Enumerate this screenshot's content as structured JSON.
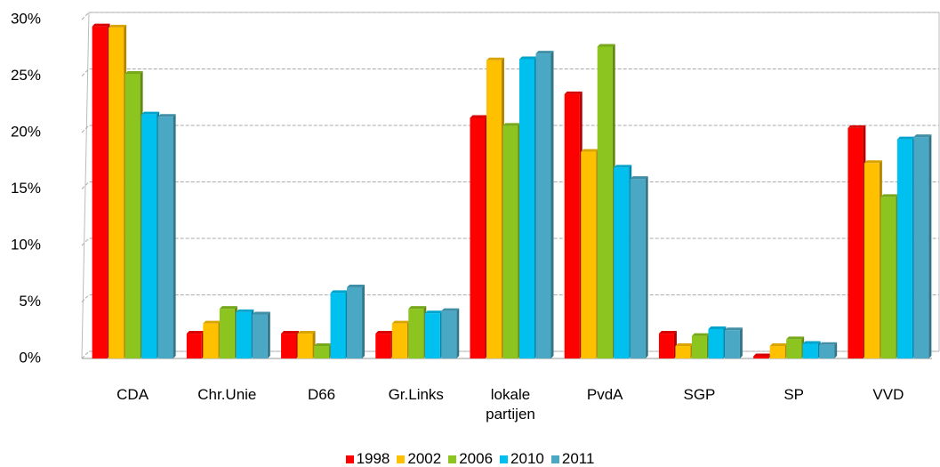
{
  "chart_data": {
    "type": "bar",
    "categories": [
      "CDA",
      "Chr.Unie",
      "D66",
      "Gr.Links",
      "lokale partijen",
      "PvdA",
      "SGP",
      "SP",
      "VVD"
    ],
    "series": [
      {
        "name": "1998",
        "color": "#ff0000",
        "values": [
          29.4,
          2.2,
          2.2,
          2.2,
          21.3,
          23.4,
          2.2,
          0.2,
          20.4
        ]
      },
      {
        "name": "2002",
        "color": "#ffc000",
        "values": [
          29.3,
          3.1,
          2.2,
          3.1,
          26.4,
          18.3,
          1.1,
          1.1,
          17.3
        ]
      },
      {
        "name": "2006",
        "color": "#8cc420",
        "values": [
          25.2,
          4.4,
          1.1,
          4.4,
          20.6,
          27.6,
          2.0,
          1.7,
          14.3
        ]
      },
      {
        "name": "2010",
        "color": "#00c0f0",
        "values": [
          21.6,
          4.1,
          5.8,
          4.0,
          26.5,
          16.9,
          2.6,
          1.3,
          19.4
        ]
      },
      {
        "name": "2011",
        "color": "#4ba8c4",
        "values": [
          21.4,
          3.9,
          6.3,
          4.2,
          27.0,
          15.9,
          2.5,
          1.2,
          19.6
        ]
      }
    ],
    "ylim": [
      0,
      30
    ],
    "yticks": [
      {
        "value": 0,
        "label": "0%"
      },
      {
        "value": 5,
        "label": "5%"
      },
      {
        "value": 10,
        "label": "10%"
      },
      {
        "value": 15,
        "label": "15%"
      },
      {
        "value": 20,
        "label": "20%"
      },
      {
        "value": 25,
        "label": "25%"
      },
      {
        "value": 30,
        "label": "30%"
      }
    ],
    "grid": true,
    "legend": "bottom"
  }
}
